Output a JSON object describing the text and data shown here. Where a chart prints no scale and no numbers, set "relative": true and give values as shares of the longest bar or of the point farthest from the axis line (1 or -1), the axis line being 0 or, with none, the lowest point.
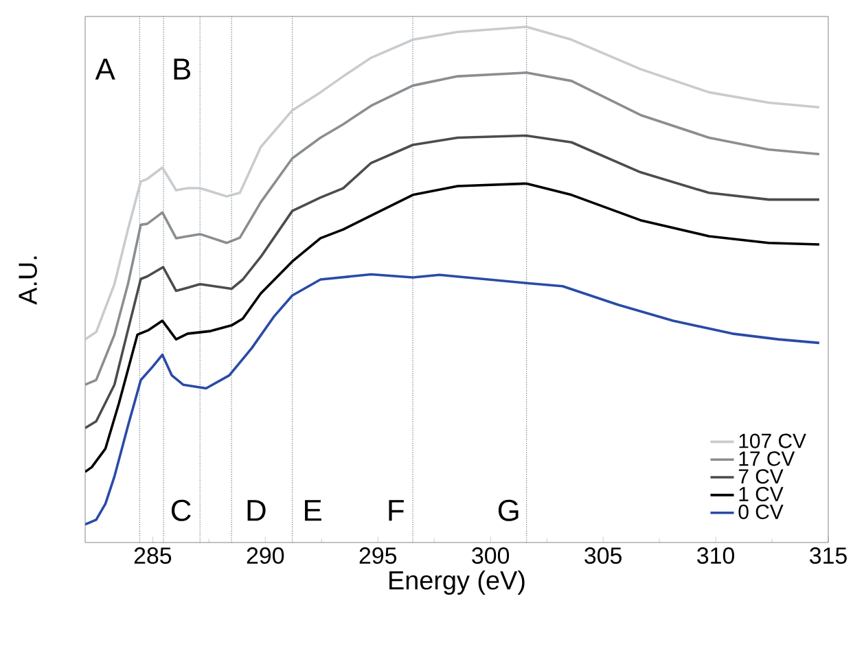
{
  "chart_data": {
    "type": "line",
    "relative": true,
    "xlabel": "Energy (eV)",
    "ylabel": "A.U.",
    "xlim": [
      282,
      315
    ],
    "xticks": [
      285,
      290,
      295,
      300,
      305,
      310,
      315
    ],
    "grid": false,
    "legend": "bottom right",
    "marker": "none",
    "line_style": "solid",
    "series": [
      {
        "name": "107 CV",
        "color": "#c8cccf",
        "x": [
          282.0,
          282.49,
          283.3,
          283.9,
          284.47,
          284.76,
          285.43,
          286.04,
          286.55,
          287.1,
          288.29,
          288.87,
          289.8,
          291.2,
          292.45,
          293.46,
          294.7,
          296.55,
          298.54,
          301.59,
          303.6,
          306.66,
          309.7,
          312.35,
          314.6
        ],
        "values": [
          0.394,
          0.408,
          0.501,
          0.607,
          0.7,
          0.705,
          0.727,
          0.683,
          0.687,
          0.687,
          0.671,
          0.678,
          0.767,
          0.838,
          0.873,
          0.904,
          0.94,
          0.975,
          0.99,
          1.0,
          0.975,
          0.918,
          0.873,
          0.853,
          0.844
        ]
      },
      {
        "name": "17 CV",
        "color": "#8a8e90",
        "x": [
          282.0,
          282.49,
          283.3,
          283.9,
          284.47,
          284.76,
          285.43,
          286.04,
          286.55,
          287.1,
          288.29,
          288.87,
          289.8,
          291.2,
          292.45,
          293.46,
          294.7,
          296.55,
          298.54,
          301.59,
          303.6,
          306.66,
          309.7,
          312.35,
          314.6
        ],
        "values": [
          0.306,
          0.315,
          0.403,
          0.501,
          0.616,
          0.618,
          0.64,
          0.59,
          0.594,
          0.598,
          0.581,
          0.591,
          0.66,
          0.745,
          0.785,
          0.811,
          0.847,
          0.886,
          0.904,
          0.911,
          0.895,
          0.829,
          0.785,
          0.762,
          0.753
        ]
      },
      {
        "name": "7 CV",
        "color": "#4a4c4e",
        "x": [
          282.0,
          282.49,
          283.3,
          283.9,
          284.47,
          284.76,
          285.46,
          286.04,
          286.55,
          287.1,
          288.5,
          289.0,
          289.8,
          291.2,
          292.45,
          293.46,
          294.7,
          296.55,
          298.54,
          301.59,
          303.6,
          306.66,
          309.7,
          312.35,
          314.6
        ],
        "values": [
          0.222,
          0.235,
          0.306,
          0.412,
          0.511,
          0.516,
          0.534,
          0.488,
          0.494,
          0.501,
          0.492,
          0.51,
          0.554,
          0.643,
          0.669,
          0.687,
          0.736,
          0.771,
          0.785,
          0.789,
          0.776,
          0.718,
          0.678,
          0.665,
          0.665
        ]
      },
      {
        "name": "1 CV",
        "color": "#000000",
        "x": [
          282.0,
          282.29,
          282.9,
          283.5,
          284.32,
          284.82,
          285.43,
          286.04,
          286.55,
          287.57,
          288.5,
          289.0,
          289.8,
          291.2,
          292.45,
          293.46,
          294.7,
          296.55,
          298.54,
          301.59,
          303.6,
          306.66,
          309.7,
          312.35,
          314.6
        ],
        "values": [
          0.137,
          0.146,
          0.182,
          0.27,
          0.403,
          0.412,
          0.43,
          0.394,
          0.405,
          0.41,
          0.421,
          0.434,
          0.483,
          0.545,
          0.59,
          0.607,
          0.634,
          0.674,
          0.691,
          0.696,
          0.674,
          0.625,
          0.594,
          0.581,
          0.578
        ]
      },
      {
        "name": "0 CV",
        "color": "#2a4aa8",
        "x": [
          282.0,
          282.49,
          282.9,
          283.3,
          283.9,
          284.47,
          285.0,
          285.43,
          285.85,
          286.35,
          287.37,
          288.4,
          289.4,
          290.4,
          291.2,
          292.45,
          294.7,
          296.55,
          297.73,
          301.59,
          303.2,
          305.66,
          308.1,
          310.74,
          312.78,
          314.6
        ],
        "values": [
          0.035,
          0.044,
          0.075,
          0.128,
          0.226,
          0.315,
          0.341,
          0.364,
          0.324,
          0.306,
          0.299,
          0.324,
          0.377,
          0.439,
          0.479,
          0.51,
          0.52,
          0.514,
          0.519,
          0.503,
          0.497,
          0.461,
          0.43,
          0.405,
          0.394,
          0.387
        ]
      }
    ],
    "ref_lines": [
      {
        "axis": "x",
        "value": 284.42,
        "color": "#607080",
        "line_style": "dotted"
      },
      {
        "axis": "x",
        "value": 285.48,
        "color": "#607080",
        "line_style": "dotted"
      },
      {
        "axis": "x",
        "value": 287.1,
        "color": "#607080",
        "line_style": "dotted"
      },
      {
        "axis": "x",
        "value": 288.5,
        "color": "#607080",
        "line_style": "dotted"
      },
      {
        "axis": "x",
        "value": 291.2,
        "color": "#607080",
        "line_style": "dotted"
      },
      {
        "axis": "x",
        "value": 296.55,
        "color": "#607080",
        "line_style": "dotted"
      },
      {
        "axis": "x",
        "value": 301.6,
        "color": "#607080",
        "line_style": "dotted"
      }
    ],
    "annotations": [
      "A",
      "B",
      "C",
      "D",
      "E",
      "F",
      "G"
    ]
  }
}
